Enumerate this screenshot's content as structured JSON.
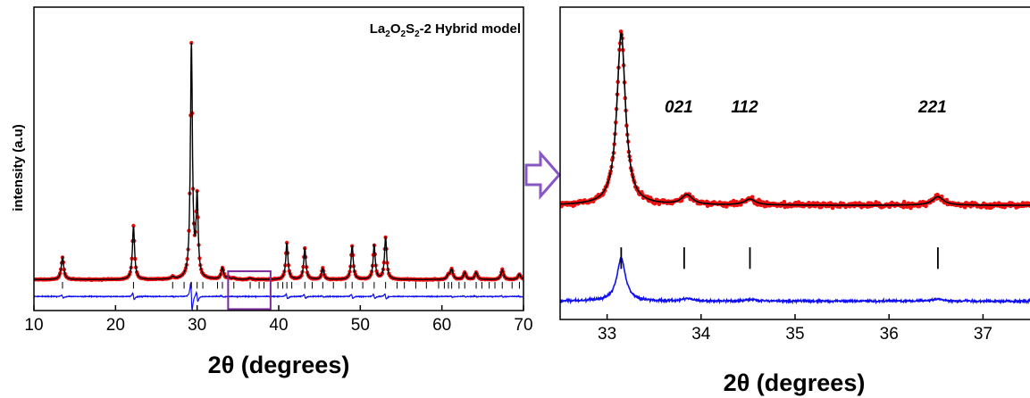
{
  "colors": {
    "observed": "#ee1111",
    "calculated": "#000000",
    "difference": "#1010ee",
    "bragg_ticks": "#000000",
    "zoom_box": "#7a2a9a",
    "arrow": "#8a55c4"
  },
  "chart_data": [
    {
      "id": "full-pattern",
      "type": "line",
      "title_parts": [
        {
          "text": "La",
          "sub": false
        },
        {
          "text": "2",
          "sub": true
        },
        {
          "text": "O",
          "sub": false
        },
        {
          "text": "2",
          "sub": true
        },
        {
          "text": "S",
          "sub": false
        },
        {
          "text": "2",
          "sub": true
        },
        {
          "text": "-2 Hybrid model",
          "sub": false
        }
      ],
      "xlabel": "2θ (degrees)",
      "ylabel": "intensity (a.u)",
      "xlim": [
        10,
        70
      ],
      "ylim": [
        -8,
        100
      ],
      "xticks": [
        "10",
        "20",
        "30",
        "40",
        "50",
        "60",
        "70"
      ],
      "baseline": 3,
      "difference_offset": -3,
      "peaks": [
        {
          "x": 13.5,
          "h": 8,
          "w": 0.18
        },
        {
          "x": 22.2,
          "h": 19,
          "w": 0.16
        },
        {
          "x": 27.0,
          "h": 0.8,
          "w": 0.2
        },
        {
          "x": 29.3,
          "h": 83,
          "w": 0.15
        },
        {
          "x": 30.0,
          "h": 28,
          "w": 0.15
        },
        {
          "x": 33.1,
          "h": 4,
          "w": 0.18
        },
        {
          "x": 33.8,
          "h": 0.6,
          "w": 0.2
        },
        {
          "x": 34.5,
          "h": 0.4,
          "w": 0.2
        },
        {
          "x": 36.5,
          "h": 0.5,
          "w": 0.2
        },
        {
          "x": 41.0,
          "h": 13,
          "w": 0.16
        },
        {
          "x": 43.2,
          "h": 11,
          "w": 0.16
        },
        {
          "x": 45.4,
          "h": 4,
          "w": 0.16
        },
        {
          "x": 49.0,
          "h": 12,
          "w": 0.16
        },
        {
          "x": 51.7,
          "h": 12,
          "w": 0.16
        },
        {
          "x": 53.1,
          "h": 15,
          "w": 0.16
        },
        {
          "x": 60.8,
          "h": 1.5,
          "w": 0.2
        },
        {
          "x": 61.2,
          "h": 3.5,
          "w": 0.18
        },
        {
          "x": 62.8,
          "h": 2.5,
          "w": 0.18
        },
        {
          "x": 64.2,
          "h": 2.5,
          "w": 0.18
        },
        {
          "x": 67.4,
          "h": 3.5,
          "w": 0.18
        },
        {
          "x": 69.5,
          "h": 2,
          "w": 0.18
        }
      ],
      "bragg_positions": [
        13.5,
        22.2,
        27.0,
        28.4,
        29.3,
        30.0,
        30.7,
        32.5,
        33.1,
        33.8,
        34.5,
        36.5,
        37.6,
        38.2,
        39.9,
        40.5,
        41.0,
        41.6,
        43.2,
        44.1,
        45.4,
        46.7,
        48.2,
        49.0,
        50.3,
        51.7,
        53.1,
        54.5,
        55.4,
        56.8,
        58.1,
        59.6,
        60.3,
        60.8,
        61.2,
        62.1,
        62.8,
        64.2,
        64.9,
        65.8,
        66.5,
        67.4,
        68.6,
        69.5
      ],
      "zoom_box": {
        "x": [
          33.8,
          39.0
        ],
        "y": [
          -7.5,
          6
        ]
      }
    },
    {
      "id": "zoom",
      "type": "line",
      "xlabel": "2θ (degrees)",
      "xlim": [
        32.5,
        37.5
      ],
      "ylim": [
        -7,
        22
      ],
      "xticks": [
        "33",
        "34",
        "35",
        "36",
        "37"
      ],
      "baseline": 3.6,
      "difference_offset": -5.3,
      "peaks": [
        {
          "x": 33.15,
          "h": 16,
          "w": 0.055
        },
        {
          "x": 33.85,
          "h": 0.9,
          "w": 0.07
        },
        {
          "x": 34.52,
          "h": 0.55,
          "w": 0.07
        },
        {
          "x": 36.52,
          "h": 0.8,
          "w": 0.07
        }
      ],
      "reflections": [
        {
          "x": 33.15,
          "label": ""
        },
        {
          "x": 33.82,
          "label": "021"
        },
        {
          "x": 34.52,
          "label": "112"
        },
        {
          "x": 36.52,
          "label": "221"
        }
      ]
    }
  ]
}
